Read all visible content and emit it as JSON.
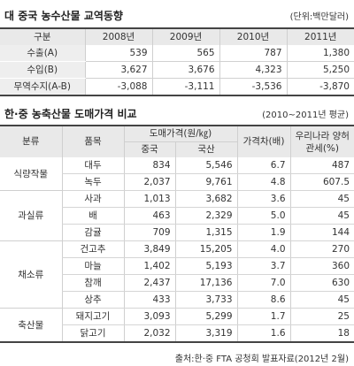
{
  "section1": {
    "title": "대 중국 농수산물 교역동향",
    "unit": "(단위:백만달러)",
    "headers": [
      "구분",
      "2008년",
      "2009년",
      "2010년",
      "2011년"
    ],
    "rows": [
      {
        "label": "수출(A)",
        "values": [
          "539",
          "565",
          "787",
          "1,380"
        ]
      },
      {
        "label": "수입(B)",
        "values": [
          "3,627",
          "3,676",
          "4,323",
          "5,250"
        ]
      },
      {
        "label": "무역수지(A-B)",
        "values": [
          "-3,088",
          "-3,111",
          "-3,536",
          "-3,870"
        ]
      }
    ]
  },
  "section2": {
    "title": "한·중 농축산물 도매가격 비교",
    "period": "(2010~2011년 평균)",
    "headers": {
      "category": "분류",
      "item": "품목",
      "price": "도매가격(원/㎏)",
      "china": "중국",
      "korea": "국산",
      "diff": "가격차(배)",
      "tariff": "우리나라 양허관세(%)"
    },
    "groups": [
      {
        "category": "식량작물",
        "rows": [
          {
            "item": "대두",
            "china": "834",
            "korea": "5,546",
            "diff": "6.7",
            "tariff": "487"
          },
          {
            "item": "녹두",
            "china": "2,037",
            "korea": "9,761",
            "diff": "4.8",
            "tariff": "607.5"
          }
        ]
      },
      {
        "category": "과실류",
        "rows": [
          {
            "item": "사과",
            "china": "1,013",
            "korea": "3,682",
            "diff": "3.6",
            "tariff": "45"
          },
          {
            "item": "배",
            "china": "463",
            "korea": "2,329",
            "diff": "5.0",
            "tariff": "45"
          },
          {
            "item": "감귤",
            "china": "709",
            "korea": "1,315",
            "diff": "1.9",
            "tariff": "144"
          }
        ]
      },
      {
        "category": "채소류",
        "rows": [
          {
            "item": "건고추",
            "china": "3,849",
            "korea": "15,205",
            "diff": "4.0",
            "tariff": "270"
          },
          {
            "item": "마늘",
            "china": "1,402",
            "korea": "5,193",
            "diff": "3.7",
            "tariff": "360"
          },
          {
            "item": "참깨",
            "china": "2,437",
            "korea": "17,136",
            "diff": "7.0",
            "tariff": "630"
          },
          {
            "item": "상추",
            "china": "433",
            "korea": "3,733",
            "diff": "8.6",
            "tariff": "45"
          }
        ]
      },
      {
        "category": "축산물",
        "rows": [
          {
            "item": "돼지고기",
            "china": "3,093",
            "korea": "5,299",
            "diff": "1.7",
            "tariff": "25"
          },
          {
            "item": "닭고기",
            "china": "2,032",
            "korea": "3,319",
            "diff": "1.6",
            "tariff": "18"
          }
        ]
      }
    ]
  },
  "source": "출처:한·중 FTA 공청회 발표자료(2012년 2월)"
}
